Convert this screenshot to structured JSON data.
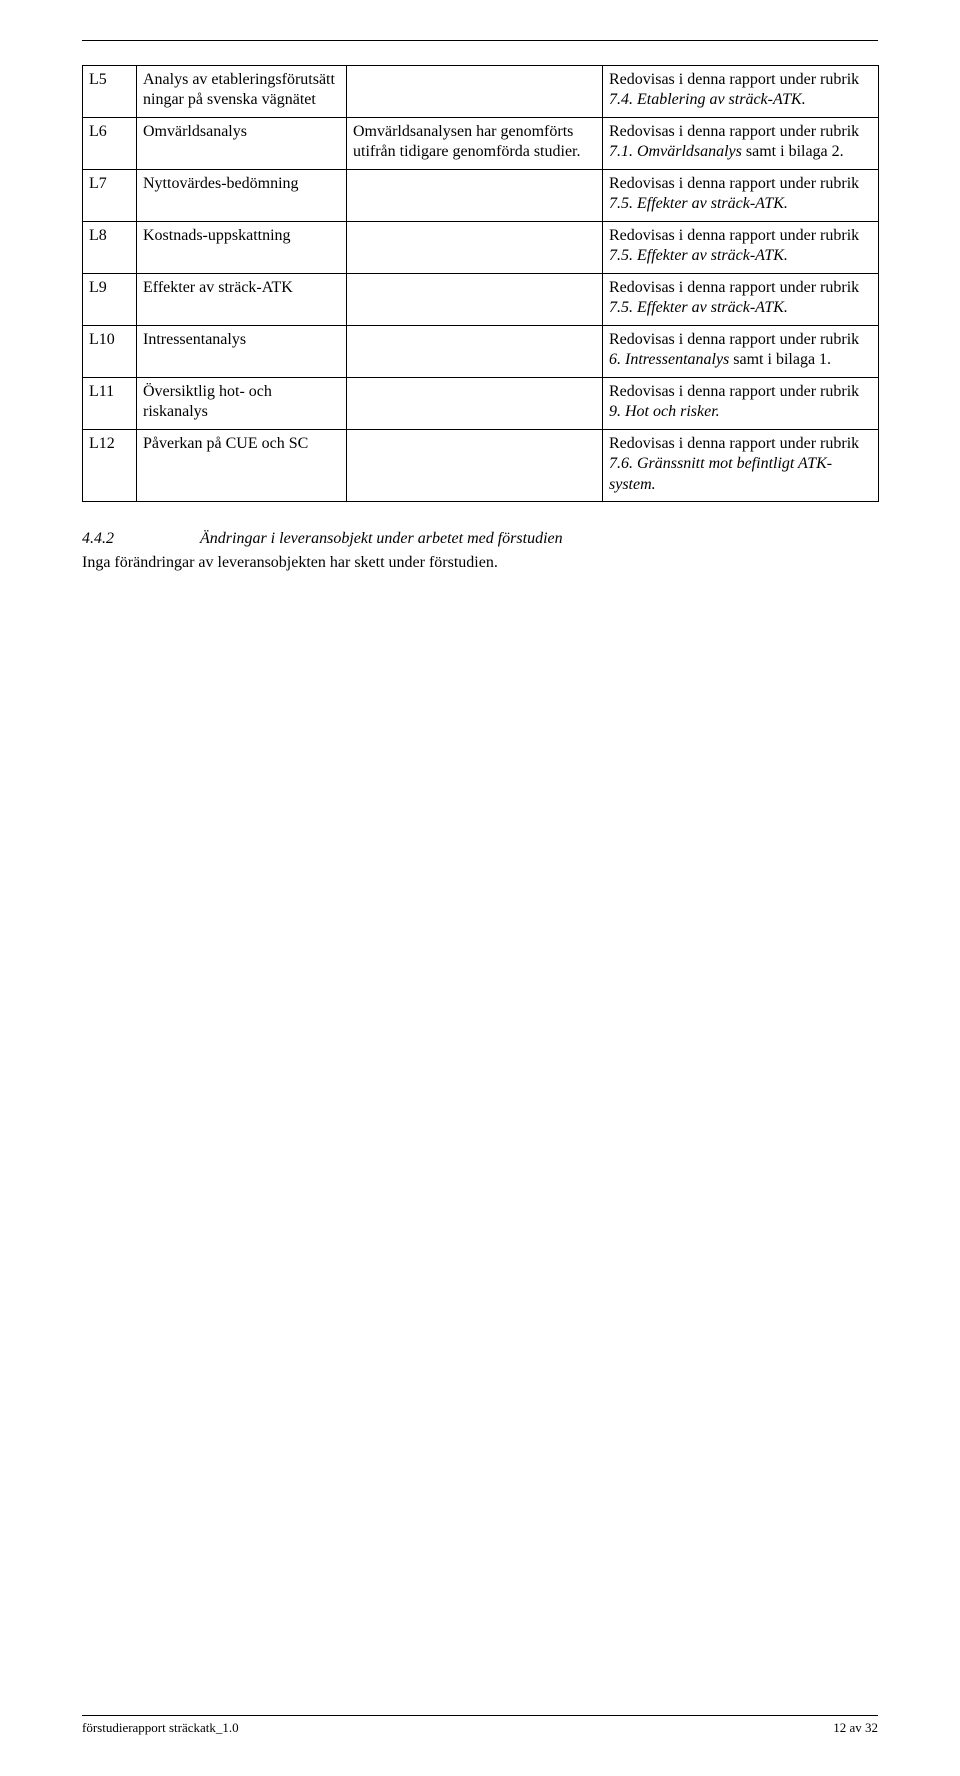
{
  "table": {
    "rows": [
      {
        "code": "L5",
        "col2": "Analys av etableringsförutsätt ningar på svenska vägnätet",
        "col3": "",
        "col4_parts": [
          {
            "t": "Redovisas i denna rapport under rubrik",
            "i": false
          },
          {
            "t": "7.4. Etablering av sträck-ATK.",
            "i": true
          }
        ]
      },
      {
        "code": "L6",
        "col2": "Omvärldsanalys",
        "col3": "Omvärldsanalysen har genomförts utifrån tidigare genomförda studier.",
        "col4_parts": [
          {
            "t": "Redovisas i denna rapport under rubrik",
            "i": false
          },
          {
            "t": "7.1. Omvärldsanalys",
            "i": true
          },
          {
            "t": " samt i",
            "i": false
          },
          {
            "t": "bilaga 2.",
            "i": false
          }
        ]
      },
      {
        "code": "L7",
        "col2": "Nyttovärdes-bedömning",
        "col3": "",
        "col4_parts": [
          {
            "t": "Redovisas i denna rapport under rubrik ",
            "i": false
          },
          {
            "t": "7.5. Effekter av sträck-ATK.",
            "i": true
          }
        ]
      },
      {
        "code": "L8",
        "col2": "Kostnads-uppskattning",
        "col3": "",
        "col4_parts": [
          {
            "t": "Redovisas i denna rapport under rubrik ",
            "i": false
          },
          {
            "t": "7.5. Effekter av sträck-ATK.",
            "i": true
          }
        ]
      },
      {
        "code": "L9",
        "col2": "Effekter av sträck-ATK",
        "col3": "",
        "col4_parts": [
          {
            "t": "Redovisas i denna rapport under rubrik ",
            "i": false
          },
          {
            "t": "7.5. Effekter av sträck-ATK.",
            "i": true
          }
        ]
      },
      {
        "code": "L10",
        "col2": "Intressentanalys",
        "col3": "",
        "col4_parts": [
          {
            "t": "Redovisas i denna rapport under rubrik",
            "i": false
          },
          {
            "t": "6. Intressentanalys",
            "i": true
          },
          {
            "t": " samt i bilaga 1.",
            "i": false
          }
        ]
      },
      {
        "code": "L11",
        "col2": "Översiktlig hot- och riskanalys",
        "col3": "",
        "col4_parts": [
          {
            "t": "Redovisas i denna rapport under rubrik ",
            "i": false
          },
          {
            "t": "9. Hot och risker.",
            "i": true
          }
        ]
      },
      {
        "code": "L12",
        "col2": "Påverkan på CUE och SC",
        "col3": "",
        "col4_parts": [
          {
            "t": "Redovisas i denna rapport under rubrik",
            "i": false
          },
          {
            "t": "7.6. Gränssnitt mot befintligt ATK-system.",
            "i": true
          }
        ]
      }
    ]
  },
  "section": {
    "num": "4.4.2",
    "title": "Ändringar i leveransobjekt under arbetet med förstudien",
    "body": "Inga förändringar av leveransobjekten har skett under förstudien."
  },
  "footer": {
    "left": "förstudierapport sträckatk_1.0",
    "right": "12 av 32"
  }
}
